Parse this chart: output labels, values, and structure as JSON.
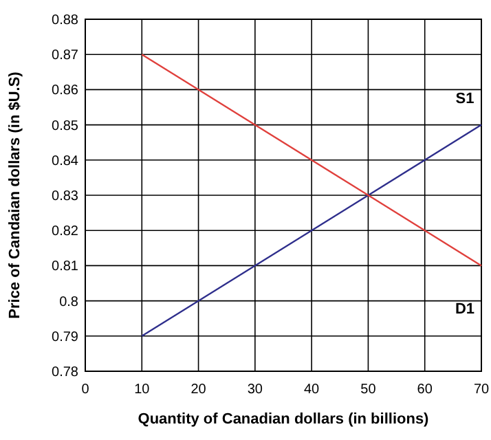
{
  "chart_data": {
    "type": "line",
    "xlabel": "Quantity of Canadian dollars (in billions)",
    "ylabel": "Price of Candaian dollars (in $U.S)",
    "xlim": [
      0,
      70
    ],
    "xticks": [
      0,
      10,
      20,
      30,
      40,
      50,
      60,
      70
    ],
    "ylim": [
      0.78,
      0.88
    ],
    "yticks": [
      0.78,
      0.79,
      0.8,
      0.81,
      0.82,
      0.83,
      0.84,
      0.85,
      0.86,
      0.87,
      0.88
    ],
    "grid": true,
    "marker": "none",
    "line_style": "solid",
    "x": [
      10,
      70
    ],
    "series": [
      {
        "name": "S1",
        "color": "#2e2e8c",
        "values": [
          0.79,
          0.85
        ]
      },
      {
        "name": "D1",
        "color": "#e0403c",
        "values": [
          0.87,
          0.81
        ]
      }
    ]
  }
}
